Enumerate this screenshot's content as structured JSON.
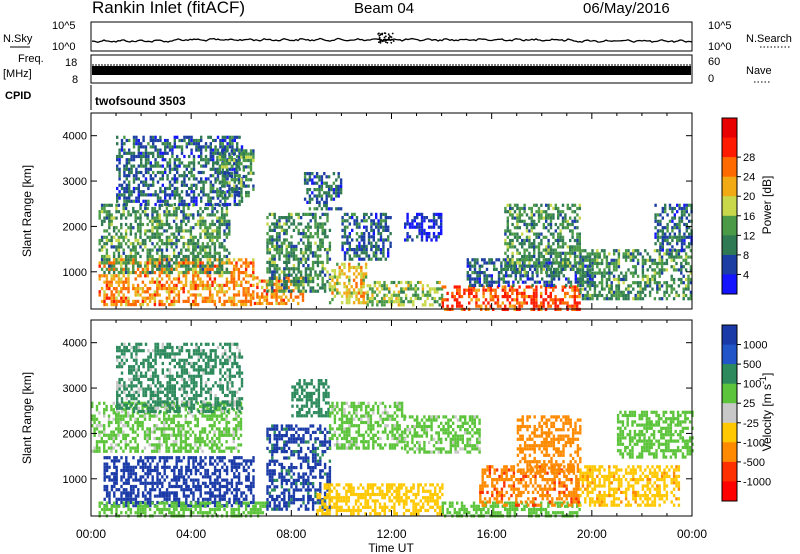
{
  "header": {
    "station": "Rankin Inlet (fitACF)",
    "beam": "Beam 04",
    "date": "06/May/2016"
  },
  "noise_panel": {
    "left_label": "N.Sky",
    "left_ticks": [
      "10^5",
      "10^0"
    ],
    "right_ticks": [
      "10^5",
      "10^0"
    ],
    "right_label": "N.Search"
  },
  "freq_panel": {
    "left_label_top": "Freq.",
    "left_label_unit": "[MHz]",
    "left_ticks": [
      "18",
      "8"
    ],
    "right_ticks": [
      "60",
      "0"
    ],
    "right_label": "Nave"
  },
  "cpid_panel": {
    "label": "CPID",
    "program": "twofsound 3503"
  },
  "chart_data": [
    {
      "type": "heatmap",
      "parameter": "Power",
      "ylabel": "Slant Range [km]",
      "yticks": [
        1000,
        2000,
        3000,
        4000
      ],
      "ylim": [
        180,
        4500
      ],
      "colorbar_label": "Power [dB]",
      "colorbar_ticks": [
        4,
        8,
        12,
        16,
        20,
        24,
        28
      ],
      "colorbar_colors": [
        "#1414ff",
        "#1c3ea3",
        "#2f7a52",
        "#4a9a48",
        "#c8d84a",
        "#f2aa14",
        "#ff6a00",
        "#ff1a00",
        "#e80000"
      ],
      "echo_regions": [
        {
          "t0": 0.3,
          "t1": 6.5,
          "r0": 300,
          "r1": 1300,
          "level": 24
        },
        {
          "t0": 0.3,
          "t1": 5.5,
          "r0": 1000,
          "r1": 2500,
          "level": 12
        },
        {
          "t0": 1.0,
          "t1": 6.0,
          "r0": 2500,
          "r1": 4000,
          "level": 8
        },
        {
          "t0": 5.0,
          "t1": 6.5,
          "r0": 2700,
          "r1": 3700,
          "level": 12
        },
        {
          "t0": 6.5,
          "t1": 8.5,
          "r0": 300,
          "r1": 900,
          "level": 24
        },
        {
          "t0": 7.0,
          "t1": 9.5,
          "r0": 600,
          "r1": 2300,
          "level": 12
        },
        {
          "t0": 8.5,
          "t1": 10.0,
          "r0": 2400,
          "r1": 3200,
          "level": 8
        },
        {
          "t0": 9.5,
          "t1": 11.0,
          "r0": 300,
          "r1": 1200,
          "level": 20
        },
        {
          "t0": 10.0,
          "t1": 12.0,
          "r0": 1300,
          "r1": 2300,
          "level": 8
        },
        {
          "t0": 11.0,
          "t1": 14.0,
          "r0": 300,
          "r1": 800,
          "level": 16
        },
        {
          "t0": 12.5,
          "t1": 14.0,
          "r0": 1700,
          "r1": 2300,
          "level": 4
        },
        {
          "t0": 14.0,
          "t1": 19.5,
          "r0": 200,
          "r1": 700,
          "level": 28
        },
        {
          "t0": 15.0,
          "t1": 20.0,
          "r0": 700,
          "r1": 1300,
          "level": 8
        },
        {
          "t0": 16.5,
          "t1": 19.5,
          "r0": 1000,
          "r1": 2500,
          "level": 12
        },
        {
          "t0": 19.5,
          "t1": 24.0,
          "r0": 400,
          "r1": 1500,
          "level": 12
        },
        {
          "t0": 22.5,
          "t1": 24.0,
          "r0": 1500,
          "r1": 2500,
          "level": 8
        }
      ]
    },
    {
      "type": "heatmap",
      "parameter": "Velocity",
      "ylabel": "Slant Range [km]",
      "yticks": [
        1000,
        2000,
        3000,
        4000
      ],
      "ylim": [
        180,
        4500
      ],
      "xlabel": "Time UT",
      "xticks": [
        "00:00",
        "04:00",
        "08:00",
        "12:00",
        "16:00",
        "20:00",
        "00:00"
      ],
      "xlim": [
        0,
        24
      ],
      "colorbar_label": "Velocity [m s",
      "colorbar_label_superscript": "-1",
      "colorbar_label_suffix": "]",
      "colorbar_ticks": [
        "1000",
        "500",
        "100",
        "25",
        "-25",
        "-100",
        "-500",
        "-1000"
      ],
      "colorbar_colors": [
        "#1a3aa8",
        "#2255c8",
        "#2d8a5c",
        "#5cc43a",
        "#c8c8c8",
        "#ffc800",
        "#ff8a00",
        "#ff3000",
        "#ff0000"
      ],
      "echo_regions": [
        {
          "t0": 0.0,
          "t1": 6.0,
          "r0": 1600,
          "r1": 2700,
          "level": 25
        },
        {
          "t0": 0.5,
          "t1": 6.5,
          "r0": 400,
          "r1": 1500,
          "level": 1000
        },
        {
          "t0": 1.0,
          "t1": 6.0,
          "r0": 2500,
          "r1": 4000,
          "level": 100
        },
        {
          "t0": 0.3,
          "t1": 7.0,
          "r0": 200,
          "r1": 500,
          "level": 25
        },
        {
          "t0": 7.0,
          "t1": 9.5,
          "r0": 300,
          "r1": 2200,
          "level": 1000
        },
        {
          "t0": 8.0,
          "t1": 9.5,
          "r0": 2400,
          "r1": 3200,
          "level": 100
        },
        {
          "t0": 9.5,
          "t1": 12.5,
          "r0": 1700,
          "r1": 2700,
          "level": 25
        },
        {
          "t0": 9.0,
          "t1": 14.0,
          "r0": 200,
          "r1": 900,
          "level": -100
        },
        {
          "t0": 12.5,
          "t1": 15.5,
          "r0": 1600,
          "r1": 2400,
          "level": 25
        },
        {
          "t0": 14.0,
          "t1": 19.5,
          "r0": 200,
          "r1": 500,
          "level": 25
        },
        {
          "t0": 15.5,
          "t1": 19.5,
          "r0": 400,
          "r1": 1300,
          "level": -500
        },
        {
          "t0": 17.0,
          "t1": 19.5,
          "r0": 1200,
          "r1": 2400,
          "level": -500
        },
        {
          "t0": 19.5,
          "t1": 23.5,
          "r0": 400,
          "r1": 1300,
          "level": -100
        },
        {
          "t0": 21.0,
          "t1": 24.0,
          "r0": 1500,
          "r1": 2500,
          "level": 25
        }
      ]
    }
  ]
}
